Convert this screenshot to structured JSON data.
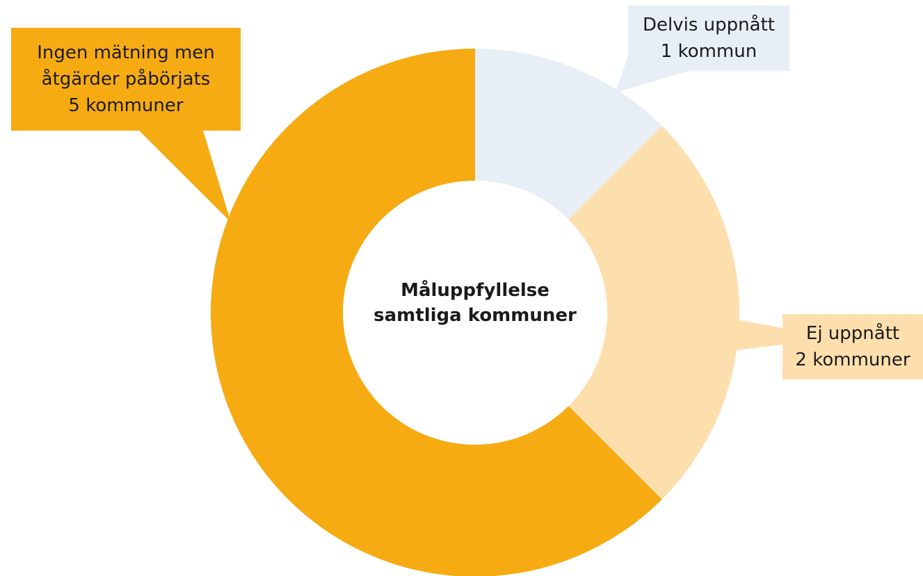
{
  "chart_data": {
    "type": "donut",
    "title": "Måluppfyllelse\nsamtliga kommuner",
    "categories": [
      "Delvis uppnått",
      "Ej uppnått",
      "Ingen mätning men\nåtgärder påbörjats"
    ],
    "values": [
      1,
      2,
      5
    ],
    "value_labels": [
      "1 kommun",
      "2 kommuner",
      "5 kommuner"
    ],
    "colors": [
      "#e7eef6",
      "#fddfae",
      "#f6ab13"
    ]
  }
}
